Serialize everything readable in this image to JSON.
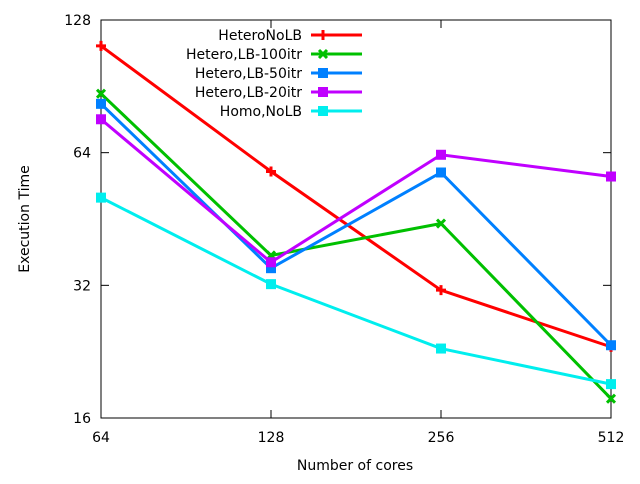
{
  "chart_data": {
    "type": "line",
    "title": "",
    "xlabel": "Number of cores",
    "ylabel": "Execution Time",
    "x": [
      64,
      128,
      256,
      512
    ],
    "x_scale": "log2",
    "y_scale": "log2",
    "xlim": [
      64,
      512
    ],
    "ylim": [
      16,
      128
    ],
    "x_ticks": [
      "64",
      "128",
      "256",
      "512"
    ],
    "y_ticks": [
      "16",
      "32",
      "64",
      "128"
    ],
    "y_tick_values": [
      16,
      32,
      64,
      128
    ],
    "grid": false,
    "legend_position": "top-right",
    "series": [
      {
        "name": "HeteroNoLB",
        "color": "#ff0000",
        "marker": "plus",
        "values": [
          111.8,
          58.0,
          31.2,
          23.2
        ]
      },
      {
        "name": "Hetero,LB-100itr",
        "color": "#00c000",
        "marker": "cross",
        "values": [
          87.1,
          37.4,
          44.2,
          17.7
        ]
      },
      {
        "name": "Hetero,LB-50itr",
        "color": "#0080ff",
        "marker": "square",
        "values": [
          82.6,
          35.0,
          57.7,
          23.4
        ]
      },
      {
        "name": "Hetero,LB-20itr",
        "color": "#c000ff",
        "marker": "square",
        "values": [
          76.2,
          36.1,
          63.3,
          56.5
        ]
      },
      {
        "name": "Homo,NoLB",
        "color": "#00eeee",
        "marker": "square",
        "values": [
          50.6,
          32.2,
          23.0,
          19.1
        ]
      }
    ]
  }
}
